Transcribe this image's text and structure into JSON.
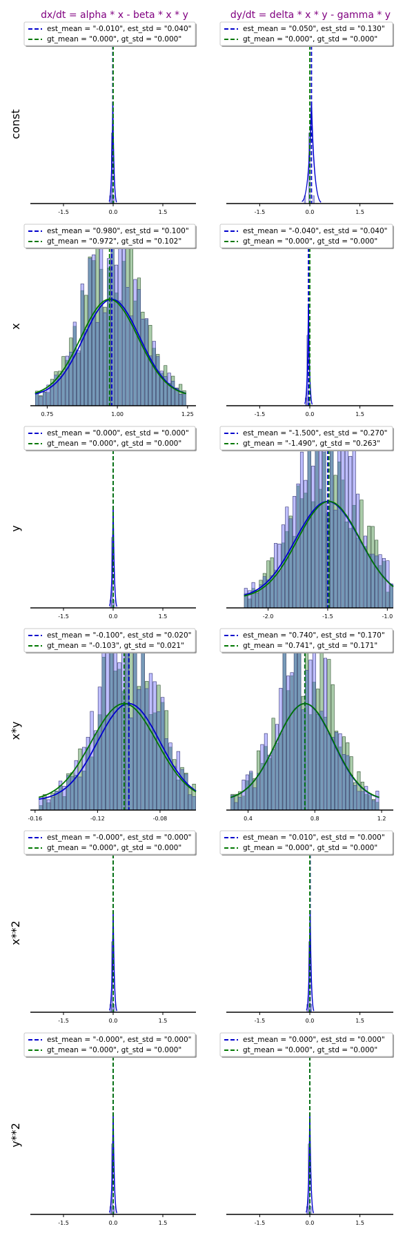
{
  "figure": {
    "col_titles": [
      "dx/dt = alpha * x - beta * x * y",
      "dy/dt = delta * x * y - gamma * y"
    ],
    "row_labels": [
      "const",
      "x",
      "y",
      "x*y",
      "x**2",
      "y**2"
    ]
  },
  "colors": {
    "title": "#800080",
    "est": "#0000cc",
    "gt": "#007700",
    "est_bar": "#8080ff",
    "gt_bar": "#8fbc8f",
    "overlap_bar": "#5f8fa0"
  },
  "chart_data": [
    {
      "type": "histogram",
      "row": "const",
      "col": 0,
      "est_label": "est_mean = \"-0.010\", est_std = \"0.040\"",
      "gt_label": "gt_mean = \"0.000\", gt_std = \"0.000\"",
      "est_mean": -0.01,
      "est_std": 0.04,
      "gt_mean": 0.0,
      "gt_std": 0.0,
      "xlim": [
        -2.5,
        2.5
      ],
      "xticks": [
        -1.5,
        0.0,
        1.5
      ],
      "xticklabels": [
        "-1.5",
        "0.0",
        "1.5"
      ]
    },
    {
      "type": "histogram",
      "row": "const",
      "col": 1,
      "est_label": "est_mean = \"0.050\", est_std = \"0.130\"",
      "gt_label": "gt_mean = \"0.000\", gt_std = \"0.000\"",
      "est_mean": 0.05,
      "est_std": 0.13,
      "gt_mean": 0.0,
      "gt_std": 0.0,
      "xlim": [
        -2.5,
        2.5
      ],
      "xticks": [
        -1.5,
        0.0,
        1.5
      ],
      "xticklabels": [
        "-1.5",
        "0.0",
        "1.5"
      ]
    },
    {
      "type": "histogram",
      "row": "x",
      "col": 0,
      "est_label": "est_mean = \"0.980\", est_std = \"0.100\"",
      "gt_label": "gt_mean = \"0.972\", gt_std = \"0.102\"",
      "est_mean": 0.98,
      "est_std": 0.1,
      "gt_mean": 0.972,
      "gt_std": 0.102,
      "xlim": [
        0.69,
        1.28
      ],
      "xticks": [
        0.75,
        1.0,
        1.25
      ],
      "xticklabels": [
        "0.75",
        "1.00",
        "1.25"
      ]
    },
    {
      "type": "histogram",
      "row": "x",
      "col": 1,
      "est_label": "est_mean = \"-0.040\", est_std = \"0.040\"",
      "gt_label": "gt_mean = \"0.000\", gt_std = \"0.000\"",
      "est_mean": -0.04,
      "est_std": 0.04,
      "gt_mean": 0.0,
      "gt_std": 0.0,
      "xlim": [
        -2.5,
        2.5
      ],
      "xticks": [
        -1.5,
        0.0,
        1.5
      ],
      "xticklabels": [
        "-1.5",
        "0.0",
        "1.5"
      ]
    },
    {
      "type": "histogram",
      "row": "y",
      "col": 0,
      "est_label": "est_mean = \"0.000\", est_std = \"0.000\"",
      "gt_label": "gt_mean = \"0.000\", gt_std = \"0.000\"",
      "est_mean": 0.0,
      "est_std": 0.0,
      "gt_mean": 0.0,
      "gt_std": 0.0,
      "xlim": [
        -2.5,
        2.5
      ],
      "xticks": [
        -1.5,
        0.0,
        1.5
      ],
      "xticklabels": [
        "-1.5",
        "0.0",
        "1.5"
      ]
    },
    {
      "type": "histogram",
      "row": "y",
      "col": 1,
      "est_label": "est_mean = \"-1.500\", est_std = \"0.270\"",
      "gt_label": "gt_mean = \"-1.490\", gt_std = \"0.263\"",
      "est_mean": -1.5,
      "est_std": 0.27,
      "gt_mean": -1.49,
      "gt_std": 0.263,
      "xlim": [
        -2.35,
        -0.95
      ],
      "xticks": [
        -2.0,
        -1.5,
        -1.0
      ],
      "xticklabels": [
        "-2.0",
        "-1.5",
        "-1.0"
      ]
    },
    {
      "type": "histogram",
      "row": "x*y",
      "col": 0,
      "est_label": "est_mean = \"-0.100\", est_std = \"0.020\"",
      "gt_label": "gt_mean = \"-0.103\", gt_std = \"0.021\"",
      "est_mean": -0.1,
      "est_std": 0.02,
      "gt_mean": -0.103,
      "gt_std": 0.021,
      "xlim": [
        -0.163,
        -0.057
      ],
      "xticks": [
        -0.16,
        -0.12,
        -0.08
      ],
      "xticklabels": [
        "-0.16",
        "-0.12",
        "-0.08"
      ]
    },
    {
      "type": "histogram",
      "row": "x*y",
      "col": 1,
      "est_label": "est_mean = \"0.740\", est_std = \"0.170\"",
      "gt_label": "gt_mean = \"0.741\", gt_std = \"0.171\"",
      "est_mean": 0.74,
      "est_std": 0.17,
      "gt_mean": 0.741,
      "gt_std": 0.171,
      "xlim": [
        0.27,
        1.27
      ],
      "xticks": [
        0.4,
        0.8,
        1.2
      ],
      "xticklabels": [
        "0.4",
        "0.8",
        "1.2"
      ]
    },
    {
      "type": "histogram",
      "row": "x**2",
      "col": 0,
      "est_label": "est_mean = \"-0.000\", est_std = \"0.000\"",
      "gt_label": "gt_mean = \"0.000\", gt_std = \"0.000\"",
      "est_mean": 0.0,
      "est_std": 0.0,
      "gt_mean": 0.0,
      "gt_std": 0.0,
      "xlim": [
        -2.5,
        2.5
      ],
      "xticks": [
        -1.5,
        0.0,
        1.5
      ],
      "xticklabels": [
        "-1.5",
        "0.0",
        "1.5"
      ]
    },
    {
      "type": "histogram",
      "row": "x**2",
      "col": 1,
      "est_label": "est_mean = \"0.010\", est_std = \"0.000\"",
      "gt_label": "gt_mean = \"0.000\", gt_std = \"0.000\"",
      "est_mean": 0.01,
      "est_std": 0.0,
      "gt_mean": 0.0,
      "gt_std": 0.0,
      "xlim": [
        -2.5,
        2.5
      ],
      "xticks": [
        -1.5,
        0.0,
        1.5
      ],
      "xticklabels": [
        "-1.5",
        "0.0",
        "1.5"
      ]
    },
    {
      "type": "histogram",
      "row": "y**2",
      "col": 0,
      "est_label": "est_mean = \"-0.000\", est_std = \"0.000\"",
      "gt_label": "gt_mean = \"0.000\", gt_std = \"0.000\"",
      "est_mean": 0.0,
      "est_std": 0.0,
      "gt_mean": 0.0,
      "gt_std": 0.0,
      "xlim": [
        -2.5,
        2.5
      ],
      "xticks": [
        -1.5,
        0.0,
        1.5
      ],
      "xticklabels": [
        "-1.5",
        "0.0",
        "1.5"
      ]
    },
    {
      "type": "histogram",
      "row": "y**2",
      "col": 1,
      "est_label": "est_mean = \"0.000\", est_std = \"0.000\"",
      "gt_label": "gt_mean = \"0.000\", gt_std = \"0.000\"",
      "est_mean": 0.0,
      "est_std": 0.0,
      "gt_mean": 0.0,
      "gt_std": 0.0,
      "xlim": [
        -2.5,
        2.5
      ],
      "xticks": [
        -1.5,
        0.0,
        1.5
      ],
      "xticklabels": [
        "-1.5",
        "0.0",
        "1.5"
      ]
    }
  ]
}
